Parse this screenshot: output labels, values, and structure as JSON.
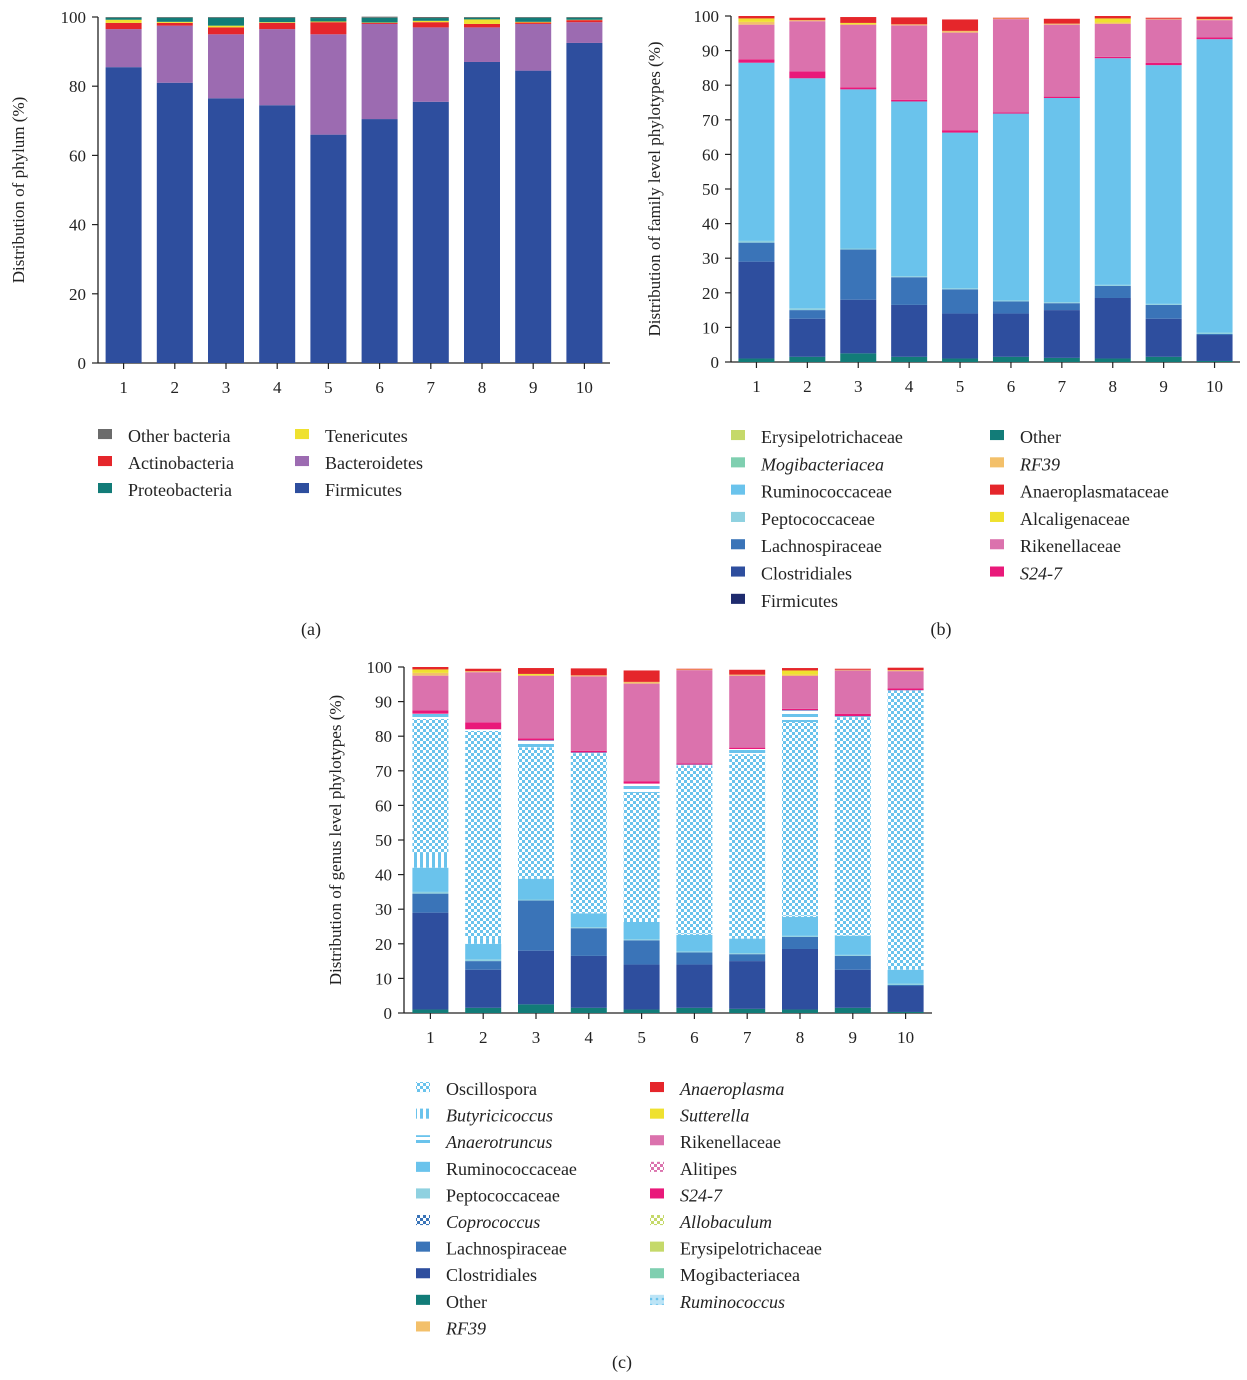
{
  "colors": {
    "firmicutes": "#2e4e9e",
    "bacteroidetes": "#9c6bb1",
    "proteobacteria": "#127c78",
    "actinobacteria": "#e5262b",
    "tenericutes": "#efe12f",
    "other_bacteria": "#6b6b6b",
    "clostridiales": "#2e4e9e",
    "lachnospiraceae": "#3a74b8",
    "ruminococcaceae": "#6ac3ec",
    "peptococcaceae": "#8fd1e0",
    "mogibacteriacea": "#7fcfb0",
    "erysipelotrichaceae": "#c5d96a",
    "firmicutes_family": "#1e2b6e",
    "other": "#127c78",
    "rf39": "#f3c06a",
    "anaeroplasmataceae": "#e5262b",
    "alcaligenaceae": "#efe12f",
    "rikenellaceae": "#db72ad",
    "s24_7": "#e9197a"
  },
  "chart_data": [
    {
      "id": "a",
      "type": "bar",
      "stacked": true,
      "panel_label": "(a)",
      "ylabel": "Distribution of phylum (%)",
      "ylim": [
        0,
        100
      ],
      "yticks": [
        0,
        20,
        40,
        60,
        80,
        100
      ],
      "categories": [
        "1",
        "2",
        "3",
        "4",
        "5",
        "6",
        "7",
        "8",
        "9",
        "10"
      ],
      "series": [
        {
          "name": "Firmicutes",
          "color_key": "firmicutes",
          "values": [
            85.5,
            81,
            76.5,
            74.5,
            66,
            70.5,
            75.5,
            87,
            84.5,
            92.5
          ]
        },
        {
          "name": "Bacteroidetes",
          "color_key": "bacteroidetes",
          "values": [
            11,
            16.5,
            18.5,
            22,
            29,
            27.5,
            21.5,
            10,
            13.5,
            6
          ]
        },
        {
          "name": "Actinobacteria",
          "color_key": "actinobacteria",
          "values": [
            1.8,
            0.8,
            2,
            1.8,
            3.5,
            0.3,
            1.5,
            1,
            0.4,
            0.6
          ]
        },
        {
          "name": "Tenericutes",
          "color_key": "tenericutes",
          "values": [
            0.9,
            0.3,
            0.5,
            0.2,
            0.2,
            0.1,
            0.4,
            1.3,
            0.2,
            0.1
          ]
        },
        {
          "name": "Proteobacteria",
          "color_key": "proteobacteria",
          "values": [
            0.6,
            1.2,
            2.3,
            1.3,
            1,
            1.4,
            0.8,
            0.5,
            1.2,
            0.6
          ]
        },
        {
          "name": "Other bacteria",
          "color_key": "other_bacteria",
          "values": [
            0.2,
            0.2,
            0.2,
            0.2,
            0.3,
            0.3,
            0.3,
            0.2,
            0.2,
            0.2
          ]
        }
      ],
      "legend_columns": [
        [
          {
            "name": "Other bacteria",
            "color_key": "other_bacteria"
          },
          {
            "name": "Actinobacteria",
            "color_key": "actinobacteria"
          },
          {
            "name": "Proteobacteria",
            "color_key": "proteobacteria"
          }
        ],
        [
          {
            "name": "Tenericutes",
            "color_key": "tenericutes"
          },
          {
            "name": "Bacteroidetes",
            "color_key": "bacteroidetes"
          },
          {
            "name": "Firmicutes",
            "color_key": "firmicutes"
          }
        ]
      ]
    },
    {
      "id": "b",
      "type": "bar",
      "stacked": true,
      "panel_label": "(b)",
      "ylabel": "Distribution of family level phylotypes (%)",
      "ylim": [
        0,
        100
      ],
      "yticks": [
        0,
        10,
        20,
        30,
        40,
        50,
        60,
        70,
        80,
        90,
        100
      ],
      "categories": [
        "1",
        "2",
        "3",
        "4",
        "5",
        "6",
        "7",
        "8",
        "9",
        "10"
      ],
      "series": [
        {
          "name": "Other",
          "color_key": "other",
          "values": [
            1,
            1.5,
            2.5,
            1.5,
            1,
            1.5,
            1.2,
            1,
            1.5,
            0.3
          ]
        },
        {
          "name": "Clostridiales",
          "color_key": "clostridiales",
          "values": [
            28,
            11,
            15.5,
            15,
            13,
            12.5,
            13.8,
            17.5,
            11,
            7.5
          ]
        },
        {
          "name": "Lachnospiraceae",
          "color_key": "lachnospiraceae",
          "values": [
            5.5,
            2.5,
            14.5,
            8,
            7,
            3.5,
            2,
            3.5,
            4,
            0.3
          ]
        },
        {
          "name": "Peptococcaceae",
          "color_key": "peptococcaceae",
          "values": [
            0.5,
            0.5,
            0.3,
            0.3,
            0.3,
            0.3,
            0.3,
            0.3,
            0.3,
            0.4
          ]
        },
        {
          "name": "Ruminococcaceae",
          "color_key": "ruminococcaceae",
          "values": [
            51.5,
            66.5,
            46,
            50.5,
            45,
            54,
            59,
            65.5,
            69,
            84.8
          ]
        },
        {
          "name": "S24-7",
          "color_key": "s24_7",
          "values": [
            1,
            2,
            0.6,
            0.5,
            0.7,
            0.3,
            0.4,
            0.4,
            0.7,
            0.5
          ]
        },
        {
          "name": "Rikenellaceae",
          "color_key": "rikenellaceae",
          "values": [
            10,
            14.5,
            18,
            21.5,
            28.2,
            27,
            20.8,
            9.5,
            12.5,
            5
          ]
        },
        {
          "name": "RF39",
          "color_key": "rf39",
          "values": [
            0.8,
            0.3,
            0.3,
            0.3,
            0.5,
            0.2,
            0.3,
            0.4,
            0.2,
            0.3
          ]
        },
        {
          "name": "Alcaligenaceae",
          "color_key": "alcaligenaceae",
          "values": [
            1,
            0,
            0.3,
            0,
            0,
            0,
            0,
            1.2,
            0,
            0
          ]
        },
        {
          "name": "Anaeroplasmataceae",
          "color_key": "anaeroplasmataceae",
          "values": [
            0.7,
            0.7,
            1.7,
            2,
            3.3,
            0.2,
            1.4,
            0.7,
            0.3,
            0.7
          ]
        }
      ],
      "legend_columns": [
        [
          {
            "name": "Erysipelotrichaceae",
            "color_key": "erysipelotrichaceae"
          },
          {
            "name": "Mogibacteriacea",
            "color_key": "mogibacteriacea",
            "italic": true
          },
          {
            "name": "Ruminococcaceae",
            "color_key": "ruminococcaceae"
          },
          {
            "name": "Peptococcaceae",
            "color_key": "peptococcaceae"
          },
          {
            "name": "Lachnospiraceae",
            "color_key": "lachnospiraceae"
          },
          {
            "name": "Clostridiales",
            "color_key": "clostridiales"
          },
          {
            "name": "Firmicutes",
            "color_key": "firmicutes_family"
          }
        ],
        [
          {
            "name": "Other",
            "color_key": "other"
          },
          {
            "name": "RF39",
            "color_key": "rf39",
            "italic": true
          },
          {
            "name": "Anaeroplasmataceae",
            "color_key": "anaeroplasmataceae"
          },
          {
            "name": "Alcaligenaceae",
            "color_key": "alcaligenaceae"
          },
          {
            "name": "Rikenellaceae",
            "color_key": "rikenellaceae"
          },
          {
            "name": "S24-7",
            "color_key": "s24_7",
            "italic": true
          }
        ]
      ]
    },
    {
      "id": "c",
      "type": "bar",
      "stacked": true,
      "panel_label": "(c)",
      "ylabel": "Distribution of genus level phylotypes (%)",
      "ylim": [
        0,
        100
      ],
      "yticks": [
        0,
        10,
        20,
        30,
        40,
        50,
        60,
        70,
        80,
        90,
        100
      ],
      "categories": [
        "1",
        "2",
        "3",
        "4",
        "5",
        "6",
        "7",
        "8",
        "9",
        "10"
      ],
      "series": [
        {
          "name": "Other",
          "color_key": "other",
          "values": [
            1,
            1.5,
            2.5,
            1.5,
            1,
            1.5,
            1.2,
            1,
            1.5,
            0.3
          ]
        },
        {
          "name": "Clostridiales",
          "color_key": "clostridiales",
          "values": [
            28,
            11,
            15.5,
            15,
            13,
            12.5,
            13.8,
            17.5,
            11,
            7.5
          ]
        },
        {
          "name": "Lachnospiraceae",
          "color_key": "lachnospiraceae",
          "values": [
            5.5,
            2.5,
            14.5,
            8,
            7,
            3.5,
            2,
            3.5,
            4,
            0.3
          ]
        },
        {
          "name": "Peptococcaceae",
          "color_key": "peptococcaceae",
          "values": [
            0.5,
            0.5,
            0.3,
            0.3,
            0.3,
            0.3,
            0.3,
            0.3,
            0.3,
            0.4
          ]
        },
        {
          "name": "Ruminococcaceae",
          "color_key": "ruminococcaceae",
          "values": [
            7,
            4.5,
            6,
            4,
            5,
            4.8,
            4.2,
            5.5,
            5.5,
            4
          ]
        },
        {
          "name": "Butyricicoccus",
          "color_key": "ruminococcaceae",
          "pattern": "vstripe",
          "values": [
            4.5,
            1.5,
            0.3,
            0.3,
            0.3,
            0.3,
            0.3,
            0.3,
            0.2,
            0.2
          ]
        },
        {
          "name": "Oscillospora",
          "color_key": "ruminococcaceae",
          "pattern": "checker",
          "values": [
            38.5,
            60,
            37.7,
            46,
            37,
            48.7,
            53,
            56,
            63,
            80.5
          ]
        },
        {
          "name": "Anaerotruncus",
          "color_key": "ruminococcaceae",
          "pattern": "hstripe",
          "values": [
            1.5,
            0.5,
            2,
            0.2,
            2.7,
            0.2,
            1.5,
            3.4,
            0.3,
            0.1
          ]
        },
        {
          "name": "S24-7",
          "color_key": "s24_7",
          "values": [
            1,
            2,
            0.6,
            0.5,
            0.7,
            0.3,
            0.4,
            0.4,
            0.7,
            0.5
          ]
        },
        {
          "name": "Rikenellaceae",
          "color_key": "rikenellaceae",
          "values": [
            10,
            14.5,
            18,
            21.5,
            28.2,
            27,
            20.8,
            9.5,
            12.5,
            5
          ]
        },
        {
          "name": "RF39",
          "color_key": "rf39",
          "values": [
            0.8,
            0.3,
            0.3,
            0.3,
            0.5,
            0.2,
            0.3,
            0.4,
            0.2,
            0.3
          ]
        },
        {
          "name": "Sutterella",
          "color_key": "alcaligenaceae",
          "values": [
            1,
            0,
            0.3,
            0,
            0,
            0,
            0,
            1.2,
            0,
            0
          ]
        },
        {
          "name": "Anaeroplasma",
          "color_key": "anaeroplasmataceae",
          "values": [
            0.7,
            0.7,
            1.7,
            2,
            3.3,
            0.2,
            1.4,
            0.7,
            0.3,
            0.7
          ]
        }
      ],
      "legend_columns": [
        [
          {
            "name": "Oscillospora",
            "color_key": "ruminococcaceae",
            "pattern": "checker"
          },
          {
            "name": "Butyricicoccus",
            "color_key": "ruminococcaceae",
            "pattern": "vstripe",
            "italic": true
          },
          {
            "name": "Anaerotruncus",
            "color_key": "ruminococcaceae",
            "pattern": "hstripe",
            "italic": true
          },
          {
            "name": "Ruminococcaceae",
            "color_key": "ruminococcaceae"
          },
          {
            "name": "Peptococcaceae",
            "color_key": "peptococcaceae"
          },
          {
            "name": "Coprococcus",
            "color_key": "lachnospiraceae",
            "pattern": "checker",
            "italic": true
          },
          {
            "name": "Lachnospiraceae",
            "color_key": "lachnospiraceae"
          },
          {
            "name": "Clostridiales",
            "color_key": "clostridiales"
          },
          {
            "name": "Other",
            "color_key": "other"
          },
          {
            "name": "RF39",
            "color_key": "rf39",
            "italic": true
          }
        ],
        [
          {
            "name": "Anaeroplasma",
            "color_key": "anaeroplasmataceae",
            "italic": true
          },
          {
            "name": "Sutterella",
            "color_key": "alcaligenaceae",
            "italic": true
          },
          {
            "name": "Rikenellaceae",
            "color_key": "rikenellaceae"
          },
          {
            "name": "Alitipes",
            "color_key": "rikenellaceae",
            "pattern": "checker"
          },
          {
            "name": "S24-7",
            "color_key": "s24_7",
            "italic": true
          },
          {
            "name": "Allobaculum",
            "color_key": "erysipelotrichaceae",
            "pattern": "checker",
            "italic": true
          },
          {
            "name": "Erysipelotrichaceae",
            "color_key": "erysipelotrichaceae"
          },
          {
            "name": "Mogibacteriacea",
            "color_key": "mogibacteriacea"
          },
          {
            "name": "Ruminococcus",
            "color_key": "ruminococcaceae",
            "pattern": "dots",
            "italic": true
          }
        ]
      ]
    }
  ]
}
